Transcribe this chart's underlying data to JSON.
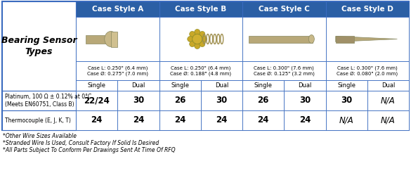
{
  "title": "Bearing Sensor\nTypes",
  "header_bg": "#2b5fa5",
  "header_text_color": "#ffffff",
  "border_color": "#3a6bbf",
  "case_headers": [
    "Case Style A",
    "Case Style B",
    "Case Style C",
    "Case Style D"
  ],
  "case_info": [
    "Case L: 0.250\" (6.4 mm)\nCase Ø: 0.275\" (7.0 mm)",
    "Case L: 0.250\" (6.4 mm)\nCase Ø: 0.188\" (4.8 mm)",
    "Case L: 0.300\" (7.6 mm)\nCase Ø: 0.125\" (3.2 mm)",
    "Case L: 0.300\" (7.6 mm)\nCase Ø: 0.080\" (2.0 mm)"
  ],
  "sub_headers": [
    "Single",
    "Dual",
    "Single",
    "Dual",
    "Single",
    "Dual",
    "Single",
    "Dual"
  ],
  "row_labels": [
    "Platinum, 100 Ω ± 0.12% at 0°C\n(Meets EN60751, Class B)",
    "Thermocouple (E, J, K, T)"
  ],
  "data": [
    [
      "22/24",
      "30",
      "26",
      "30",
      "26",
      "30",
      "30",
      "N/A"
    ],
    [
      "24",
      "24",
      "24",
      "24",
      "24",
      "24",
      "N/A",
      "N/A"
    ]
  ],
  "footnotes": [
    "*Other Wire Sizes Available",
    "*Stranded Wire Is Used, Consult Factory If Solid Is Desired",
    "*All Parts Subject To Conform Per Drawings Sent At Time Of RFQ"
  ],
  "fig_w": 5.85,
  "fig_h": 2.63,
  "dpi": 100
}
